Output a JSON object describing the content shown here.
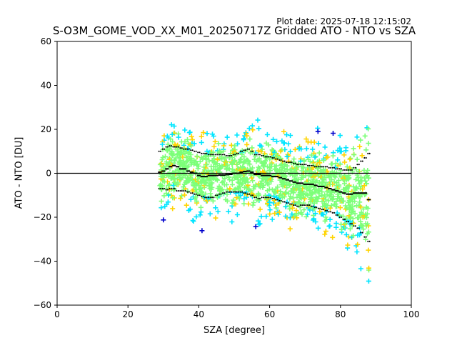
{
  "plot_date": "Plot date: 2025-07-18 12:15:02",
  "chart_data": {
    "type": "scatter",
    "title": "S-O3M_GOME_VOD_XX_M01_20250717Z Gridded ATO - NTO vs SZA",
    "xlabel": "SZA [degree]",
    "ylabel": "ATO - NTO [DU]",
    "xlim": [
      0,
      100
    ],
    "ylim": [
      -60,
      60
    ],
    "x_ticks": [
      0,
      20,
      40,
      60,
      80,
      100
    ],
    "y_ticks": [
      -60,
      -40,
      -20,
      0,
      20,
      40,
      60
    ],
    "reference_line_y": 0,
    "grid": false,
    "legend": "none",
    "marker": "+",
    "density_colors": [
      "#0000cc",
      "#00e5ff",
      "#7cff79",
      "#ffd400"
    ],
    "series": [
      {
        "role": "bin mean",
        "color": "#000000",
        "x": [
          29,
          30,
          31,
          32,
          33,
          34,
          35,
          36,
          37,
          38,
          39,
          40,
          41,
          42,
          43,
          44,
          45,
          46,
          47,
          48,
          49,
          50,
          51,
          52,
          53,
          54,
          55,
          56,
          57,
          58,
          59,
          60,
          61,
          62,
          63,
          64,
          65,
          66,
          67,
          68,
          69,
          70,
          71,
          72,
          73,
          74,
          75,
          76,
          77,
          78,
          79,
          80,
          81,
          82,
          83,
          84,
          85,
          86,
          87,
          88
        ],
        "y": [
          0.5,
          1,
          2,
          3,
          3.5,
          3,
          2,
          2,
          1,
          0.5,
          0,
          -1,
          -1.5,
          -1.5,
          -1,
          -1,
          -1,
          -0.8,
          -0.8,
          -0.6,
          -0.5,
          0,
          0,
          0.5,
          0.8,
          1,
          0.5,
          -0.5,
          -0.5,
          -1,
          -1,
          -1,
          -1.5,
          -1.5,
          -2,
          -2.5,
          -3,
          -3.5,
          -4,
          -4.5,
          -4.5,
          -5,
          -5,
          -5,
          -5.5,
          -6,
          -6,
          -6.5,
          -7,
          -7.5,
          -8,
          -8.5,
          -9,
          -9.5,
          -9.5,
          -9,
          -9,
          -9,
          -9,
          -12
        ]
      },
      {
        "role": "mean + 1 sigma",
        "color": "#000000",
        "x": [
          29,
          30,
          31,
          32,
          33,
          34,
          35,
          36,
          37,
          38,
          39,
          40,
          41,
          42,
          43,
          44,
          45,
          46,
          47,
          48,
          49,
          50,
          51,
          52,
          53,
          54,
          55,
          56,
          57,
          58,
          59,
          60,
          61,
          62,
          63,
          64,
          65,
          66,
          67,
          68,
          69,
          70,
          71,
          72,
          73,
          74,
          75,
          76,
          77,
          78,
          79,
          80,
          81,
          82,
          83,
          84,
          85,
          86,
          87,
          88
        ],
        "y": [
          10,
          11,
          12,
          12.5,
          12,
          12,
          11.5,
          11,
          11,
          10.5,
          10,
          9.5,
          9,
          9,
          8.5,
          8.5,
          8.5,
          8.5,
          8.5,
          8,
          8,
          8.5,
          9,
          10,
          10.5,
          11,
          10,
          8.5,
          8.5,
          8,
          7.5,
          7.5,
          7,
          6.5,
          6,
          5.5,
          5,
          5,
          4.5,
          4,
          4,
          4,
          3.5,
          3.5,
          3,
          3,
          3,
          3,
          2.5,
          2.5,
          2,
          2,
          1.5,
          1.5,
          1.5,
          2.5,
          4,
          5.5,
          7,
          9
        ]
      },
      {
        "role": "mean - 1 sigma",
        "color": "#000000",
        "x": [
          29,
          30,
          31,
          32,
          33,
          34,
          35,
          36,
          37,
          38,
          39,
          40,
          41,
          42,
          43,
          44,
          45,
          46,
          47,
          48,
          49,
          50,
          51,
          52,
          53,
          54,
          55,
          56,
          57,
          58,
          59,
          60,
          61,
          62,
          63,
          64,
          65,
          66,
          67,
          68,
          69,
          70,
          71,
          72,
          73,
          74,
          75,
          76,
          77,
          78,
          79,
          80,
          81,
          82,
          83,
          84,
          85,
          86,
          87,
          88
        ],
        "y": [
          -7,
          -7,
          -7.5,
          -7,
          -7,
          -8,
          -8,
          -8,
          -8.5,
          -9,
          -9.5,
          -10,
          -10.5,
          -11,
          -11,
          -11,
          -10,
          -9.5,
          -9,
          -8.5,
          -8.5,
          -8.5,
          -8.5,
          -8.5,
          -9,
          -9.5,
          -10,
          -11,
          -11.5,
          -11,
          -11,
          -11,
          -11.5,
          -12,
          -12.5,
          -13,
          -13.5,
          -14,
          -14.5,
          -15,
          -14.5,
          -14.5,
          -14.5,
          -15,
          -15.5,
          -16,
          -16.5,
          -17,
          -17.5,
          -18,
          -19,
          -20,
          -21,
          -22,
          -23,
          -24,
          -25,
          -27,
          -29,
          -31
        ]
      }
    ]
  }
}
